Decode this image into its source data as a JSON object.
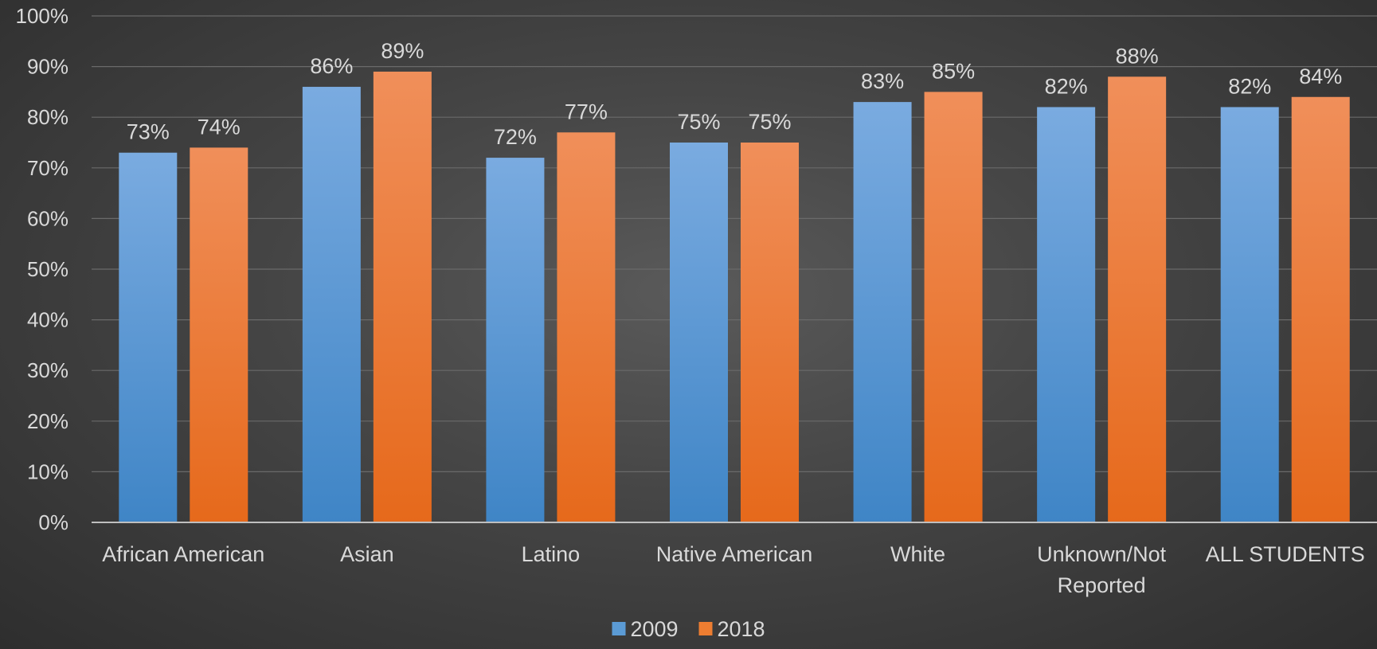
{
  "chart_data": {
    "type": "bar",
    "title": "",
    "xlabel": "",
    "ylabel": "",
    "ylim": [
      0,
      100
    ],
    "y_ticks": [
      0,
      10,
      20,
      30,
      40,
      50,
      60,
      70,
      80,
      90,
      100
    ],
    "y_tick_format": "percent",
    "grid": true,
    "legend_position": "bottom",
    "categories": [
      [
        "African American"
      ],
      [
        "Asian"
      ],
      [
        "Latino"
      ],
      [
        "Native American"
      ],
      [
        "White"
      ],
      [
        "Unknown/Not",
        "Reported"
      ],
      [
        "ALL STUDENTS"
      ]
    ],
    "series": [
      {
        "name": "2009",
        "color": "#5b9bd5",
        "values": [
          73,
          86,
          72,
          75,
          83,
          82,
          82
        ],
        "labels": [
          "73%",
          "86%",
          "72%",
          "75%",
          "83%",
          "82%",
          "82%"
        ]
      },
      {
        "name": "2018",
        "color": "#ed7d31",
        "values": [
          74,
          89,
          77,
          75,
          85,
          88,
          84
        ],
        "labels": [
          "74%",
          "89%",
          "77%",
          "75%",
          "85%",
          "88%",
          "84%"
        ]
      }
    ]
  }
}
